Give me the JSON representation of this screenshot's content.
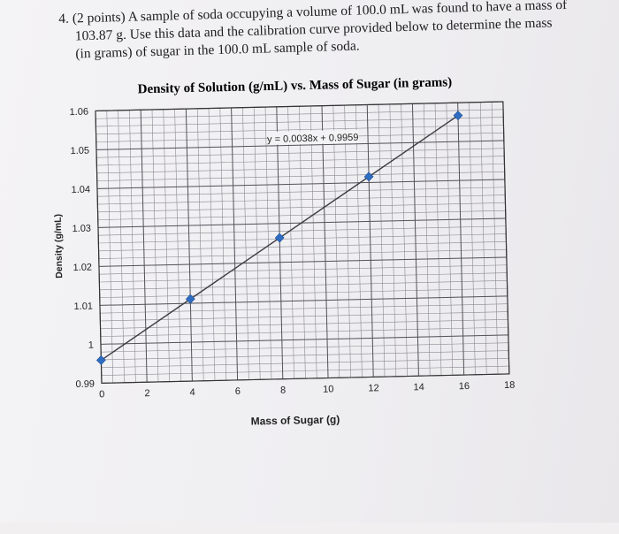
{
  "question": {
    "number": "4.",
    "line1": "(2 points) A sample of soda occupying a volume of 100.0 mL was found to have a mass of",
    "line2": "103.87 g.  Use this data and the calibration curve provided below to determine the mass",
    "line3": "(in grams) of sugar in the 100.0 mL sample of soda."
  },
  "chart_data": {
    "type": "scatter",
    "title": "Density of Solution (g/mL) vs. Mass of Sugar (in grams)",
    "xlabel": "Mass of Sugar (g)",
    "ylabel": "Density (g/mL)",
    "xlim": [
      0,
      18
    ],
    "ylim": [
      0.99,
      1.06
    ],
    "x_ticks": [
      0,
      2,
      4,
      6,
      8,
      10,
      12,
      14,
      16,
      18
    ],
    "y_ticks": [
      0.99,
      1,
      1.01,
      1.02,
      1.03,
      1.04,
      1.05,
      1.06
    ],
    "x_tick_labels": [
      "0",
      "2",
      "4",
      "6",
      "8",
      "10",
      "12",
      "14",
      "16",
      "18"
    ],
    "y_tick_labels": [
      "0.99",
      "1",
      "1.01",
      "1.02",
      "1.03",
      "1.04",
      "1.05",
      "1.06"
    ],
    "grid": true,
    "series": [
      {
        "x": [
          0,
          4,
          8,
          12,
          16
        ],
        "y": [
          0.9959,
          1.0111,
          1.0263,
          1.0415,
          1.0567
        ],
        "marker": "diamond",
        "color": "#2e6dc2"
      }
    ],
    "trendline": {
      "slope": 0.0038,
      "intercept": 0.9959,
      "x_range": [
        0,
        16
      ],
      "color": "#3a3a40"
    },
    "annotation": "y = 0.0038x + 0.9959"
  }
}
